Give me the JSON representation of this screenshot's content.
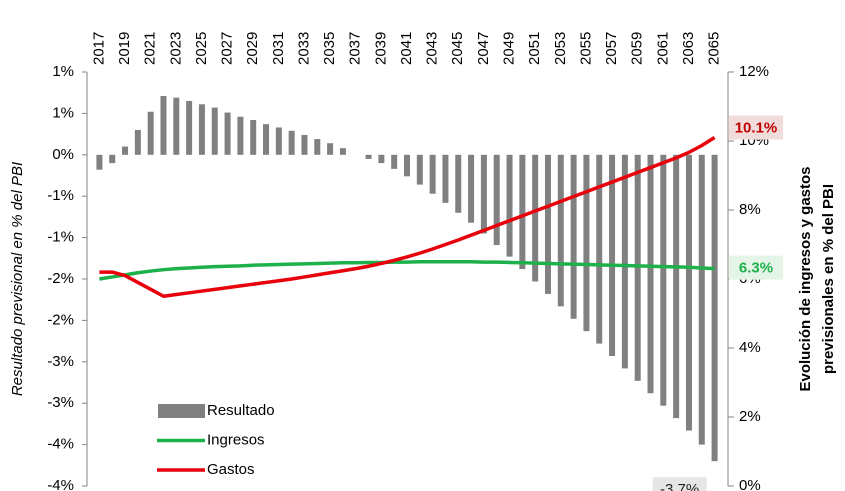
{
  "chart_data": {
    "type": "combo",
    "ylabel": "Resultado previsional en % del PBI",
    "y2label": [
      "Evolución de ingresos y gastos",
      "previsionales en % del PBI"
    ],
    "categories": [
      "2017",
      null,
      "2019",
      null,
      "2021",
      null,
      "2023",
      null,
      "2025",
      null,
      "2027",
      null,
      "2029",
      null,
      "2031",
      null,
      "2033",
      null,
      "2035",
      null,
      "2037",
      null,
      "2039",
      null,
      "2041",
      null,
      "2043",
      null,
      "2045",
      null,
      "2047",
      null,
      "2049",
      null,
      "2051",
      null,
      "2053",
      null,
      "2055",
      null,
      "2057",
      null,
      "2059",
      null,
      "2061",
      null,
      "2063",
      null,
      "2065"
    ],
    "ylim": [
      -4,
      1
    ],
    "yticks": [
      {
        "value": -4,
        "label": "-4%"
      },
      {
        "value": -3.5,
        "label": "-4%"
      },
      {
        "value": -3,
        "label": "-3%"
      },
      {
        "value": -2.5,
        "label": "-3%"
      },
      {
        "value": -2,
        "label": "-2%"
      },
      {
        "value": -1.5,
        "label": "-2%"
      },
      {
        "value": -1,
        "label": "-1%"
      },
      {
        "value": -0.5,
        "label": "-1%"
      },
      {
        "value": 0,
        "label": "0%"
      },
      {
        "value": 0.5,
        "label": "1%"
      },
      {
        "value": 1,
        "label": "1%"
      }
    ],
    "y2lim": [
      0,
      12
    ],
    "y2ticks": [
      {
        "value": 0,
        "label": "0%"
      },
      {
        "value": 2,
        "label": "2%"
      },
      {
        "value": 4,
        "label": "4%"
      },
      {
        "value": 6,
        "label": "6%"
      },
      {
        "value": 8,
        "label": "8%"
      },
      {
        "value": 10,
        "label": "10%"
      },
      {
        "value": 12,
        "label": "12%"
      }
    ],
    "series": [
      {
        "name": "Resultado",
        "type": "bar",
        "axis": "y",
        "color": "#808080",
        "label_bg": "#e6e6e6",
        "label_color": "#262626",
        "values": [
          -0.18,
          -0.1,
          0.1,
          0.3,
          0.52,
          0.71,
          0.69,
          0.65,
          0.61,
          0.57,
          0.51,
          0.46,
          0.42,
          0.37,
          0.33,
          0.29,
          0.24,
          0.19,
          0.14,
          0.08,
          0.0,
          -0.05,
          -0.1,
          -0.17,
          -0.26,
          -0.36,
          -0.47,
          -0.58,
          -0.7,
          -0.82,
          -0.95,
          -1.09,
          -1.23,
          -1.38,
          -1.53,
          -1.68,
          -1.83,
          -1.98,
          -2.13,
          -2.28,
          -2.43,
          -2.58,
          -2.73,
          -2.88,
          -3.03,
          -3.18,
          -3.33,
          -3.5,
          -3.7
        ],
        "value_labels": [
          null,
          null,
          null,
          null,
          null,
          null,
          null,
          null,
          null,
          null,
          null,
          null,
          null,
          null,
          null,
          null,
          null,
          null,
          null,
          null,
          null,
          null,
          null,
          null,
          null,
          null,
          null,
          null,
          null,
          null,
          null,
          null,
          null,
          null,
          null,
          null,
          null,
          null,
          null,
          null,
          null,
          null,
          null,
          null,
          null,
          null,
          null,
          null,
          "-3.7%"
        ]
      },
      {
        "name": "Ingresos",
        "type": "line",
        "axis": "y2",
        "color": "#1db14b",
        "label_bg": "#e4f4e6",
        "label_color": "#1db14b",
        "values": [
          6.0,
          6.06,
          6.12,
          6.18,
          6.23,
          6.27,
          6.3,
          6.32,
          6.34,
          6.36,
          6.37,
          6.38,
          6.4,
          6.41,
          6.42,
          6.43,
          6.44,
          6.45,
          6.46,
          6.47,
          6.47,
          6.48,
          6.48,
          6.49,
          6.49,
          6.5,
          6.5,
          6.5,
          6.5,
          6.5,
          6.49,
          6.49,
          6.48,
          6.47,
          6.46,
          6.45,
          6.44,
          6.43,
          6.42,
          6.41,
          6.4,
          6.39,
          6.38,
          6.37,
          6.36,
          6.35,
          6.34,
          6.32,
          6.3
        ],
        "value_labels": [
          null,
          null,
          null,
          null,
          null,
          null,
          null,
          null,
          null,
          null,
          null,
          null,
          null,
          null,
          null,
          null,
          null,
          null,
          null,
          null,
          null,
          null,
          null,
          null,
          null,
          null,
          null,
          null,
          null,
          null,
          null,
          null,
          null,
          null,
          null,
          null,
          null,
          null,
          null,
          null,
          null,
          null,
          null,
          null,
          null,
          null,
          null,
          null,
          "6.3%"
        ]
      },
      {
        "name": "Gastos",
        "type": "line",
        "axis": "y2",
        "color": "#e8000b",
        "label_bg": "#f2dcdb",
        "label_color": "#c00000",
        "values": [
          6.2,
          6.2,
          6.1,
          5.9,
          5.7,
          5.5,
          5.55,
          5.6,
          5.65,
          5.7,
          5.75,
          5.8,
          5.85,
          5.9,
          5.95,
          6.0,
          6.06,
          6.12,
          6.18,
          6.24,
          6.3,
          6.37,
          6.45,
          6.54,
          6.64,
          6.75,
          6.87,
          7.0,
          7.13,
          7.27,
          7.41,
          7.55,
          7.69,
          7.83,
          7.97,
          8.11,
          8.25,
          8.39,
          8.53,
          8.67,
          8.81,
          8.95,
          9.09,
          9.23,
          9.37,
          9.51,
          9.67,
          9.87,
          10.1
        ],
        "value_labels": [
          null,
          null,
          null,
          null,
          null,
          null,
          null,
          null,
          null,
          null,
          null,
          null,
          null,
          null,
          null,
          null,
          null,
          null,
          null,
          null,
          null,
          null,
          null,
          null,
          null,
          null,
          null,
          null,
          null,
          null,
          null,
          null,
          null,
          null,
          null,
          null,
          null,
          null,
          null,
          null,
          null,
          null,
          null,
          null,
          null,
          null,
          null,
          null,
          "10.1%"
        ]
      }
    ]
  }
}
